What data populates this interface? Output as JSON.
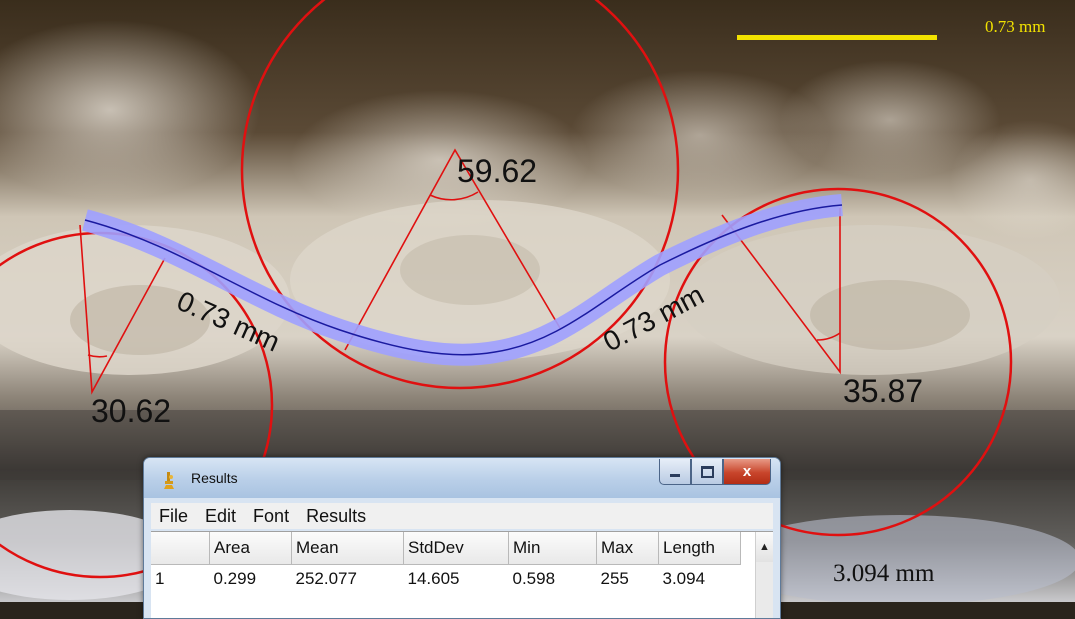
{
  "image_overlay": {
    "scale_bar_label": "0.73 mm",
    "angle_labels": [
      "30.62",
      "59.62",
      "35.87"
    ],
    "length_labels": [
      "0.73 mm",
      "0.73 mm"
    ],
    "total_length_label": "3.094 mm",
    "colors": {
      "angle_lines": "#e01010",
      "tracing_band": "#9ea0ff",
      "tracing_center": "#1a1aa0",
      "scale_bar": "#f2e200"
    }
  },
  "results_window": {
    "title": "Results",
    "icon": "imagej-microscope-icon",
    "caption_buttons": [
      "minimize-icon",
      "maximize-icon",
      "close-icon"
    ],
    "close_glyph": "x",
    "menu": [
      "File",
      "Edit",
      "Font",
      "Results"
    ],
    "columns": [
      "",
      "Area",
      "Mean",
      "StdDev",
      "Min",
      "Max",
      "Length"
    ],
    "rows": [
      [
        "1",
        "0.299",
        "252.077",
        "14.605",
        "0.598",
        "255",
        "3.094"
      ]
    ],
    "scroll_up_glyph": "▲"
  }
}
